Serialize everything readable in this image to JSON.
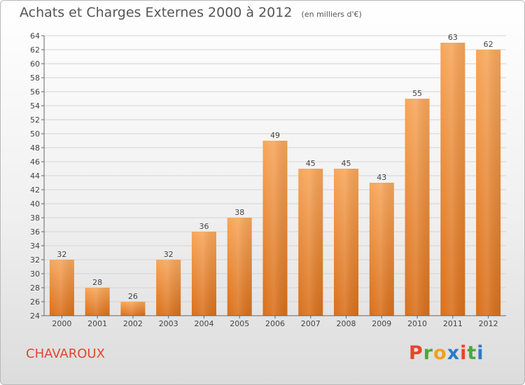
{
  "header": {
    "title": "Achats et Charges Externes 2000 à 2012",
    "subtitle": "(en milliers d'€)"
  },
  "footer": {
    "commune": "CHAVAROUX",
    "logo_letters": [
      "P",
      "r",
      "o",
      "x",
      "i",
      "t",
      "i"
    ],
    "logo_colors": [
      "#e8442a",
      "#4aa83c",
      "#f0a020",
      "#2a7ac8",
      "#e8442a",
      "#4aa83c",
      "#2a7ac8"
    ]
  },
  "chart_data": {
    "type": "bar",
    "title": "Achats et Charges Externes 2000 à 2012",
    "subtitle": "(en milliers d'€)",
    "categories": [
      "2000",
      "2001",
      "2002",
      "2003",
      "2004",
      "2005",
      "2006",
      "2007",
      "2008",
      "2009",
      "2010",
      "2011",
      "2012"
    ],
    "values": [
      32,
      28,
      26,
      32,
      36,
      38,
      49,
      45,
      45,
      43,
      55,
      63,
      62
    ],
    "ylim": [
      24,
      64
    ],
    "yticks": [
      24,
      26,
      28,
      30,
      32,
      34,
      36,
      38,
      40,
      42,
      44,
      46,
      48,
      50,
      52,
      54,
      56,
      58,
      60,
      62,
      64
    ],
    "grid": true,
    "bar_color_top": "#f7a65a",
    "bar_color_bottom": "#d96f1a"
  }
}
